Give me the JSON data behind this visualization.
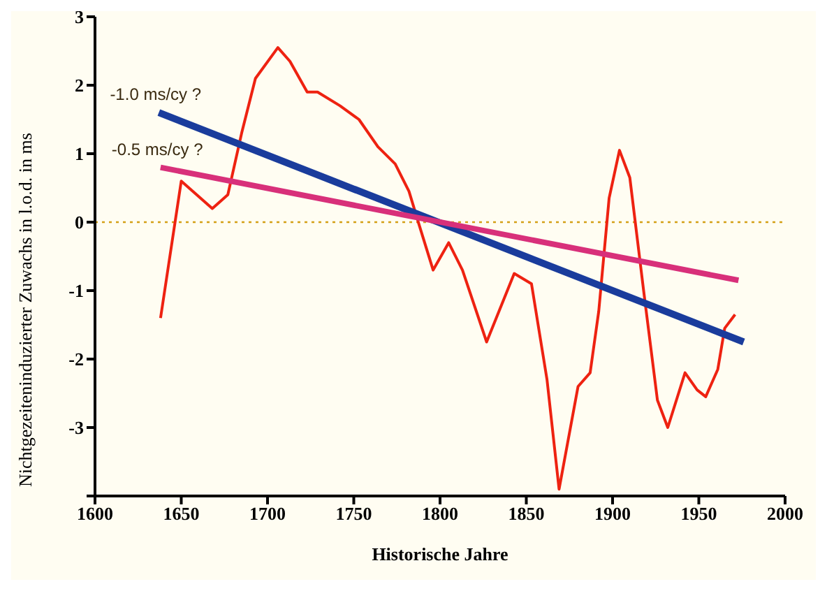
{
  "chart_data": {
    "type": "line",
    "xlabel": "Historische Jahre",
    "ylabel": "Nichtgezeiteninduzierter Zuwachs in l.o.d. in ms",
    "xlim": [
      1600,
      2000
    ],
    "xticks": [
      1600,
      1650,
      1700,
      1750,
      1800,
      1850,
      1900,
      1950,
      2000
    ],
    "ylim": [
      -4,
      3
    ],
    "yticks": [
      {
        "value": -4,
        "label": null
      },
      -3,
      -2,
      -1,
      0,
      1,
      2,
      3
    ],
    "marker": "none",
    "line_style": "solid",
    "series": [
      {
        "color": "#ee2211",
        "x": [
          1638,
          1650,
          1668,
          1677,
          1685,
          1693,
          1706,
          1713,
          1723,
          1729,
          1742,
          1753,
          1764,
          1774,
          1782,
          1788,
          1796,
          1805,
          1813,
          1827,
          1843,
          1853,
          1862,
          1869,
          1880,
          1887,
          1892,
          1898,
          1904,
          1910,
          1918,
          1926,
          1932,
          1942,
          1949,
          1954,
          1961,
          1965,
          1971
        ],
        "values": [
          -1.4,
          0.6,
          0.2,
          0.4,
          1.3,
          2.1,
          2.55,
          2.35,
          1.9,
          1.9,
          1.7,
          1.5,
          1.1,
          0.85,
          0.45,
          -0.05,
          -0.7,
          -0.3,
          -0.7,
          -1.75,
          -0.75,
          -0.9,
          -2.3,
          -3.9,
          -2.4,
          -2.2,
          -1.3,
          0.35,
          1.05,
          0.65,
          -1,
          -2.6,
          -3,
          -2.2,
          -2.45,
          -2.55,
          -2.15,
          -1.55,
          -1.35
        ]
      },
      {
        "color": "#1a3c9c",
        "x": [
          1637,
          1976
        ],
        "values": [
          1.6,
          -1.75
        ]
      },
      {
        "color": "#d8307a",
        "x": [
          1638,
          1973
        ],
        "values": [
          0.8,
          -0.85
        ]
      }
    ],
    "ref_lines": [
      {
        "axis": "y",
        "value": 0,
        "color": "#d4a017",
        "line_style": "dotted"
      }
    ],
    "annotations": [
      {
        "text": "-1.0 ms/cy ?",
        "x": 1637,
        "y": 1.6
      },
      {
        "text": "-0.5 ms/cy ?",
        "x": 1638,
        "y": 0.8
      }
    ]
  }
}
